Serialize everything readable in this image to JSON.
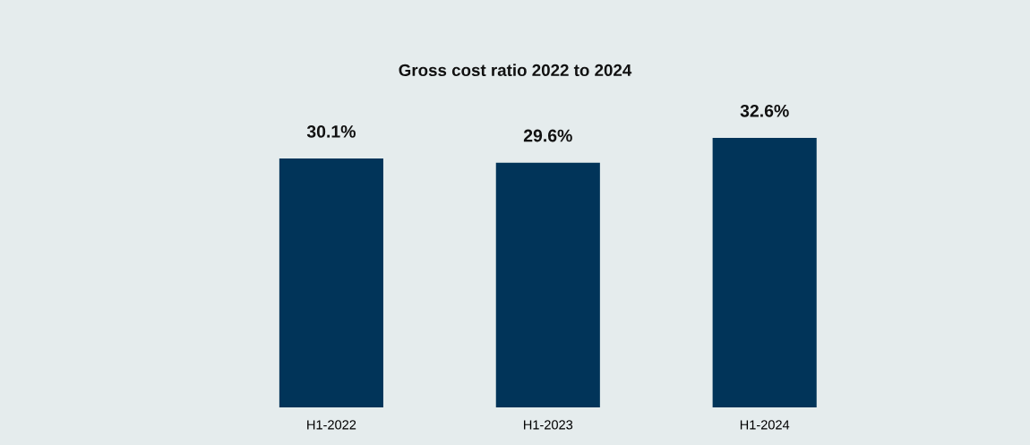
{
  "chart_data": {
    "type": "bar",
    "title": "Gross cost ratio 2022 to 2024",
    "categories": [
      "H1-2022",
      "H1-2023",
      "H1-2024"
    ],
    "values": [
      30.1,
      29.6,
      32.6
    ],
    "value_labels": [
      "30.1%",
      "29.6%",
      "32.6%"
    ],
    "color": "#013459",
    "tick_labels": "x",
    "grid": false,
    "legend": false
  }
}
